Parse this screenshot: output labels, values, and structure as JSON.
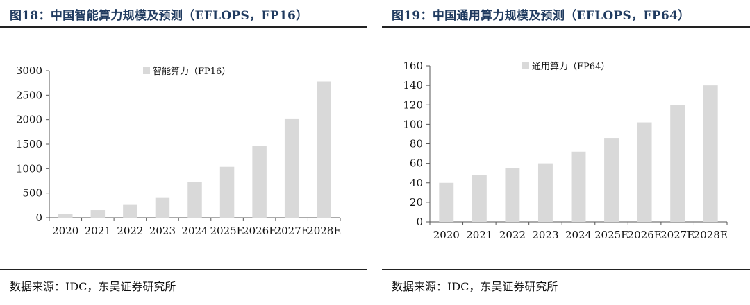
{
  "panels": [
    {
      "title": "图18：中国智能算力规模及预测（EFLOPS，FP16）",
      "source": "数据来源：IDC，东吴证券研究所"
    },
    {
      "title": "图19：中国通用算力规模及预测（EFLOPS，FP64）",
      "source": "数据来源：IDC，东吴证券研究所"
    }
  ],
  "chart_data": [
    {
      "type": "bar",
      "title": "",
      "xlabel": "",
      "ylabel": "",
      "categories": [
        "2020",
        "2021",
        "2022",
        "2023",
        "2024",
        "2025E",
        "2026E",
        "2027E",
        "2028E"
      ],
      "series": [
        {
          "name": "智能算力（FP16）",
          "color": "#d9d9d9",
          "values": [
            75,
            155,
            260,
            415,
            725,
            1037,
            1460,
            2025,
            2781
          ]
        }
      ],
      "ylim": [
        0,
        3000
      ],
      "yticks": [
        0,
        500,
        1000,
        1500,
        2000,
        2500,
        3000
      ],
      "grid": false,
      "legend": "top-center"
    },
    {
      "type": "bar",
      "title": "",
      "xlabel": "",
      "ylabel": "",
      "categories": [
        "2020",
        "2021",
        "2022",
        "2023",
        "2024",
        "2025E",
        "2026E",
        "2027E",
        "2028E"
      ],
      "series": [
        {
          "name": "通用算力（FP64）",
          "color": "#d9d9d9",
          "values": [
            40,
            48,
            55,
            60,
            72,
            86,
            102,
            120,
            140
          ]
        }
      ],
      "ylim": [
        0,
        160
      ],
      "yticks": [
        0,
        20,
        40,
        60,
        80,
        100,
        120,
        140,
        160
      ],
      "grid": false,
      "legend": "top-center"
    }
  ]
}
